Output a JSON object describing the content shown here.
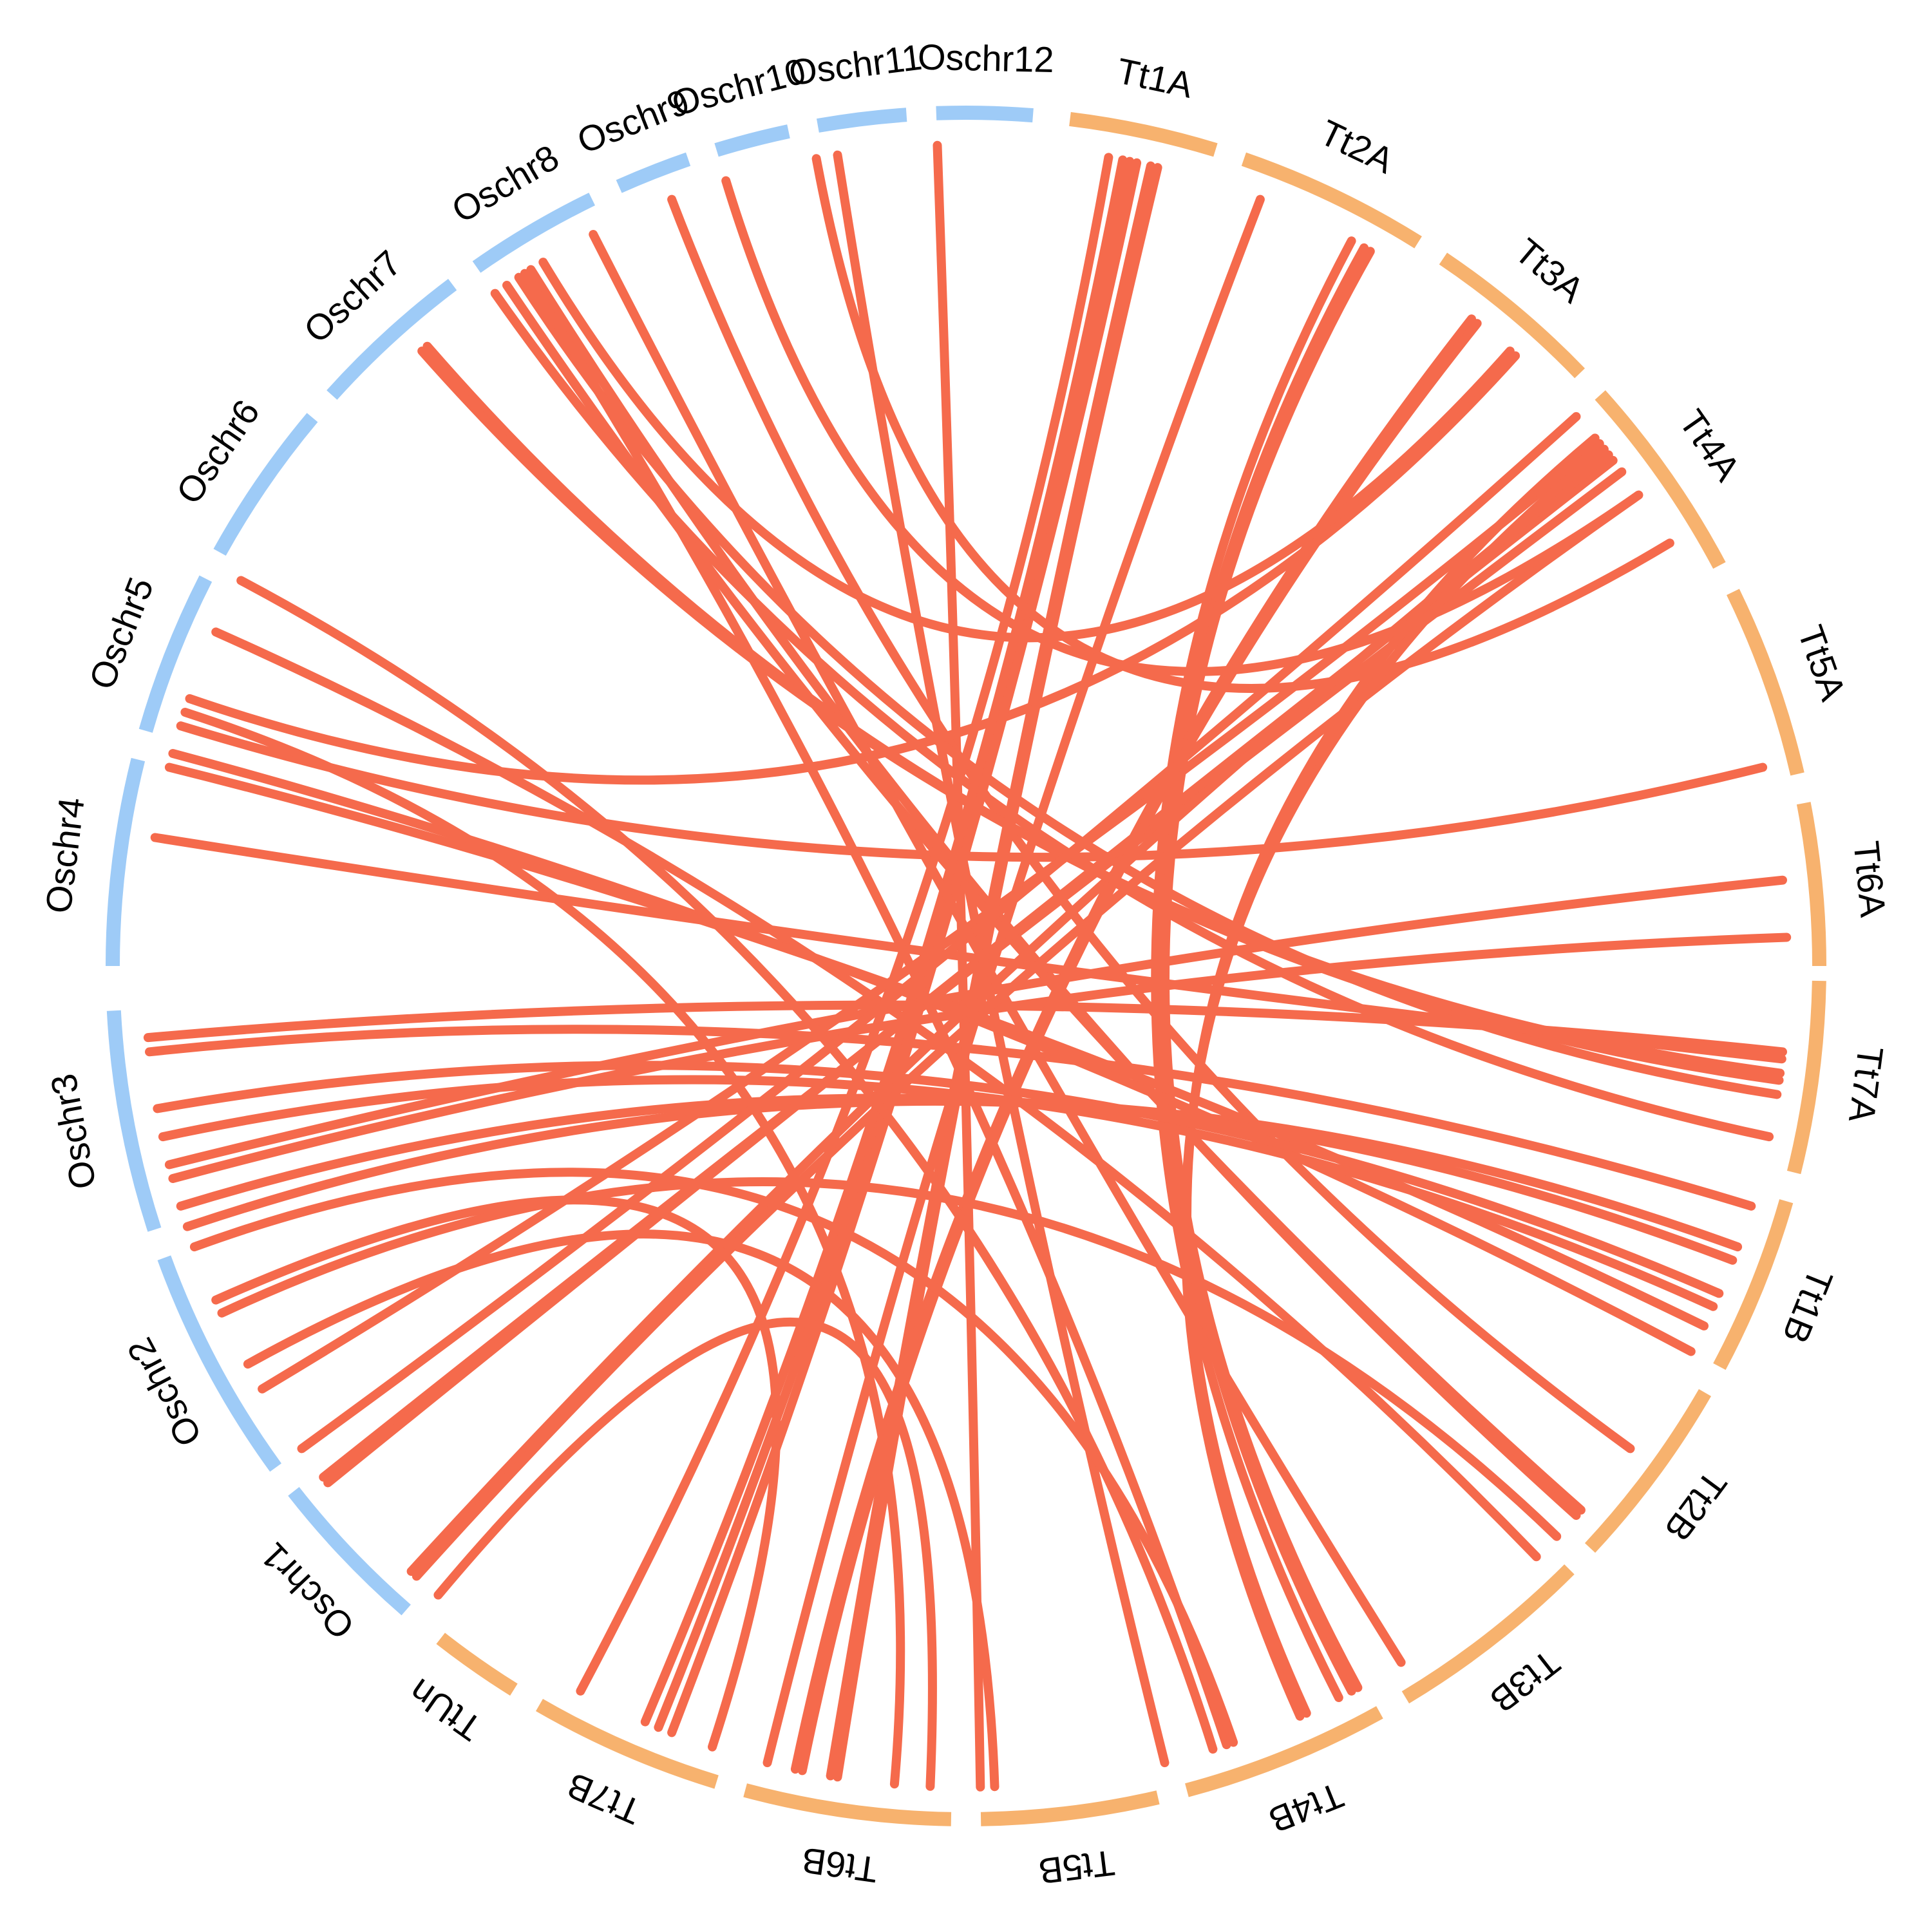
{
  "colors": {
    "rice": "#9ECBF7",
    "tt": "#F7B26E",
    "link": "#F56A4C"
  },
  "chromosomes": [
    {
      "id": "Oschr1",
      "label": "Oschr1",
      "group": "rice",
      "start": 218.0,
      "end": 229.0
    },
    {
      "id": "Oschr2",
      "label": "Oschr2",
      "group": "rice",
      "start": 200.0,
      "end": 216.0
    },
    {
      "id": "Oschr3",
      "label": "Oschr3",
      "group": "rice",
      "start": 183.0,
      "end": 198.0
    },
    {
      "id": "Oschr4",
      "label": "Oschr4",
      "group": "rice",
      "start": 166.0,
      "end": 180.0
    },
    {
      "id": "Oschr5",
      "label": "Oschr5",
      "group": "rice",
      "start": 153.0,
      "end": 164.0
    },
    {
      "id": "Oschr6",
      "label": "Oschr6",
      "group": "rice",
      "start": 140.0,
      "end": 151.0
    },
    {
      "id": "Oschr7",
      "label": "Oschr7",
      "group": "rice",
      "start": 127.0,
      "end": 138.0
    },
    {
      "id": "Oschr8",
      "label": "Oschr8",
      "group": "rice",
      "start": 116.0,
      "end": 125.0
    },
    {
      "id": "Oschr9",
      "label": "Oschr9",
      "group": "rice",
      "start": 109.0,
      "end": 114.0
    },
    {
      "id": "Oschr10",
      "label": "Oschr10",
      "group": "rice",
      "start": 102.0,
      "end": 107.0
    },
    {
      "id": "Oschr11",
      "label": "Oschr11",
      "group": "rice",
      "start": 94.0,
      "end": 100.0
    },
    {
      "id": "Oschr12",
      "label": "Oschr12",
      "group": "rice",
      "start": 85.5,
      "end": 92.0
    },
    {
      "id": "Tt1A",
      "label": "Tt1A",
      "group": "tt",
      "start": 73.0,
      "end": 83.0
    },
    {
      "id": "Tt2A",
      "label": "Tt2A",
      "group": "tt",
      "start": 58.0,
      "end": 71.0
    },
    {
      "id": "Tt3A",
      "label": "Tt3A",
      "group": "tt",
      "start": 44.0,
      "end": 56.0
    },
    {
      "id": "Tt4A",
      "label": "Tt4A",
      "group": "tt",
      "start": 28.0,
      "end": 42.0
    },
    {
      "id": "Tt5A",
      "label": "Tt5A",
      "group": "tt",
      "start": 13.0,
      "end": 26.0
    },
    {
      "id": "Tt6A",
      "label": "Tt6A",
      "group": "tt",
      "start": 0.0,
      "end": 11.0
    },
    {
      "id": "Tt7A",
      "label": "Tt7A",
      "group": "tt",
      "start": -14.0,
      "end": -1.0
    },
    {
      "id": "Tt1B",
      "label": "Tt1B",
      "group": "tt",
      "start": -28.0,
      "end": -16.0
    },
    {
      "id": "Tt2B",
      "label": "Tt2B",
      "group": "tt",
      "start": -43.0,
      "end": -30.0
    },
    {
      "id": "Tt3B",
      "label": "Tt3B",
      "group": "tt",
      "start": -59.0,
      "end": -45.0
    },
    {
      "id": "Tt4B",
      "label": "Tt4B",
      "group": "tt",
      "start": -75.0,
      "end": -61.0
    },
    {
      "id": "Tt5B",
      "label": "Tt5B",
      "group": "tt",
      "start": -89.0,
      "end": -77.0
    },
    {
      "id": "Tt6B",
      "label": "Tt6B",
      "group": "tt",
      "start": -105.0,
      "end": -91.0
    },
    {
      "id": "Tt7B",
      "label": "Tt7B",
      "group": "tt",
      "start": -120.0,
      "end": -107.0
    },
    {
      "id": "TtUn",
      "label": "TtUn",
      "group": "tt",
      "start": -128.0,
      "end": -122.0
    }
  ],
  "links": [
    [
      92.0,
      -89.0
    ],
    [
      99.0,
      -76.0
    ],
    [
      111.0,
      -36.0
    ],
    [
      125.0,
      -12.0
    ],
    [
      123.0,
      -9.0
    ],
    [
      122.0,
      -42.0
    ],
    [
      124.0,
      -41.5
    ],
    [
      131.0,
      -8.0
    ],
    [
      131.5,
      -7.5
    ],
    [
      156.0,
      -46.0
    ],
    [
      171.0,
      -6.5
    ],
    [
      163.0,
      14.0
    ],
    [
      162.0,
      -95.0
    ],
    [
      161.0,
      48.0
    ],
    [
      185.0,
      -6.0
    ],
    [
      194.0,
      6.0
    ],
    [
      195.0,
      2.0
    ],
    [
      186.0,
      -17.0
    ],
    [
      198.5,
      -20.0
    ],
    [
      204.0,
      -108.0
    ],
    [
      211.0,
      39.5
    ],
    [
      216.0,
      42.0
    ],
    [
      218.5,
      37.0
    ],
    [
      219.0,
      38.0
    ],
    [
      227.5,
      38.5
    ],
    [
      228.0,
      35.0
    ],
    [
      80.0,
      -118.0
    ],
    [
      78.5,
      -112.0
    ],
    [
      79.0,
      -113.0
    ],
    [
      78.0,
      -111.0
    ],
    [
      77.0,
      -99.5
    ],
    [
      76.5,
      -99.0
    ],
    [
      69.0,
      -104.0
    ],
    [
      62.0,
      -63.0
    ],
    [
      61.0,
      -62.0
    ],
    [
      60.5,
      -61.5
    ],
    [
      52.0,
      -102.0
    ],
    [
      51.5,
      -101.5
    ],
    [
      48.5,
      121.0
    ],
    [
      31.0,
      100.5
    ],
    [
      39.0,
      -66.0
    ],
    [
      40.0,
      -65.5
    ],
    [
      35.0,
      107.0
    ],
    [
      122.5,
      -71.5
    ],
    [
      117.0,
      -58.0
    ],
    [
      152.0,
      -72.5
    ],
    [
      209.0,
      -88.0
    ],
    [
      230.0,
      -92.5
    ],
    [
      200.0,
      -71.0
    ],
    [
      205.0,
      -44.0
    ],
    [
      165.0,
      -28.0
    ],
    [
      166.0,
      -26.0
    ],
    [
      190.0,
      -23.5
    ],
    [
      192.0,
      -24.5
    ],
    [
      197.0,
      -21.0
    ]
  ]
}
